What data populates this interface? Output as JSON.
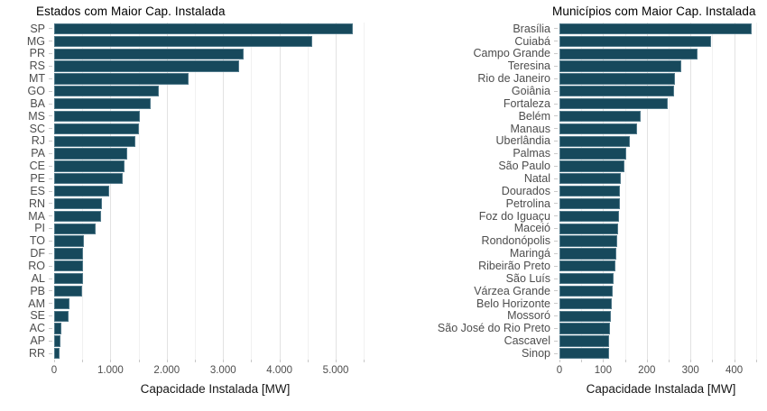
{
  "page": {
    "background_color": "#ffffff",
    "text_color": "#4d4d4d",
    "grid_major_color": "#e2e2e2",
    "grid_minor_color": "#f1f1f1"
  },
  "chart_data": [
    {
      "type": "bar",
      "orientation": "horizontal",
      "title": "Estados com Maior Cap. Instalada",
      "xlabel": "Capacidade Instalada [MW]",
      "ylabel": "",
      "legend": false,
      "grid": true,
      "bar_color": "#17495c",
      "categories": [
        "SP",
        "MG",
        "PR",
        "RS",
        "MT",
        "GO",
        "BA",
        "MS",
        "SC",
        "RJ",
        "PA",
        "CE",
        "PE",
        "ES",
        "RN",
        "MA",
        "PI",
        "TO",
        "DF",
        "RO",
        "AL",
        "PB",
        "AM",
        "SE",
        "AC",
        "AP",
        "RR"
      ],
      "values": [
        5300,
        4580,
        3360,
        3280,
        2380,
        1860,
        1715,
        1520,
        1505,
        1440,
        1295,
        1250,
        1215,
        975,
        845,
        830,
        735,
        530,
        520,
        510,
        505,
        495,
        265,
        250,
        125,
        115,
        100
      ],
      "xticks": [
        0,
        1000,
        2000,
        3000,
        4000,
        5000
      ],
      "xtick_labels": [
        "0",
        "1.000",
        "2.000",
        "3.000",
        "4.000",
        "5.000"
      ],
      "minor_step": 500,
      "xlim": [
        0,
        5720
      ]
    },
    {
      "type": "bar",
      "orientation": "horizontal",
      "title": "Municípios com Maior Cap. Instalada",
      "xlabel": "Capacidade Instalada [MW]",
      "ylabel": "",
      "legend": false,
      "grid": true,
      "bar_color": "#17495c",
      "categories": [
        "Brasília",
        "Cuiabá",
        "Campo Grande",
        "Teresina",
        "Rio de Janeiro",
        "Goiânia",
        "Fortaleza",
        "Belém",
        "Manaus",
        "Uberlândia",
        "Palmas",
        "São Paulo",
        "Natal",
        "Dourados",
        "Petrolina",
        "Foz do Iguaçu",
        "Maceió",
        "Rondonópolis",
        "Maringá",
        "Ribeirão Preto",
        "São Luís",
        "Várzea Grande",
        "Belo Horizonte",
        "Mossoró",
        "São José do Rio Preto",
        "Cascavel",
        "Sinop"
      ],
      "values": [
        440,
        347,
        317,
        278,
        264,
        262,
        248,
        186,
        178,
        162,
        152,
        149,
        141,
        139,
        138,
        137,
        134,
        132,
        130,
        128,
        124,
        121,
        119,
        117,
        116,
        114,
        113
      ],
      "xticks": [
        0,
        100,
        200,
        300,
        400
      ],
      "xtick_labels": [
        "0",
        "100",
        "200",
        "300",
        "400"
      ],
      "minor_step": 50,
      "xlim": [
        0,
        465
      ]
    }
  ]
}
